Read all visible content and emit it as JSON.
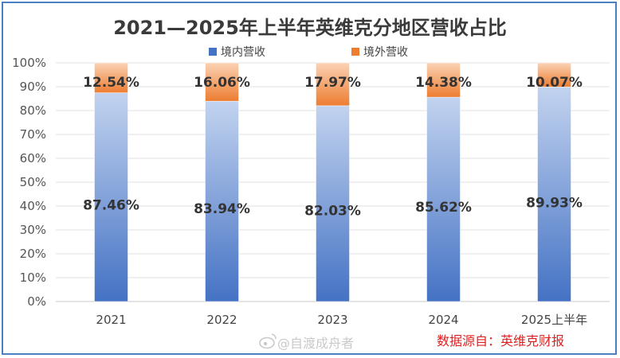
{
  "chart_data": {
    "type": "bar",
    "stacked": true,
    "percent": true,
    "title": "2021—2025年上半年英维克分地区营收占比",
    "categories": [
      "2021",
      "2022",
      "2023",
      "2024",
      "2025上半年"
    ],
    "series": [
      {
        "name": "境内营收",
        "values": [
          87.46,
          83.94,
          82.03,
          85.62,
          89.93
        ],
        "labels": [
          "87.46%",
          "83.94%",
          "82.03%",
          "85.62%",
          "89.93%"
        ],
        "color": "#4472c4"
      },
      {
        "name": "境外营收",
        "values": [
          12.54,
          16.06,
          17.97,
          14.38,
          10.07
        ],
        "labels": [
          "12.54%",
          "16.06%",
          "17.97%",
          "14.38%",
          "10.07%"
        ],
        "color": "#ed7d31"
      }
    ],
    "ylim": [
      0,
      100
    ],
    "yticks": [
      "0%",
      "10%",
      "20%",
      "30%",
      "40%",
      "50%",
      "60%",
      "70%",
      "80%",
      "90%",
      "100%"
    ],
    "legend_position": "top",
    "grid": true
  },
  "watermark": "@自渡成舟者",
  "source": "数据源自：英维克财报",
  "colors": {
    "frame": "#4a7fc1",
    "gridline": "#e0e0e0"
  }
}
